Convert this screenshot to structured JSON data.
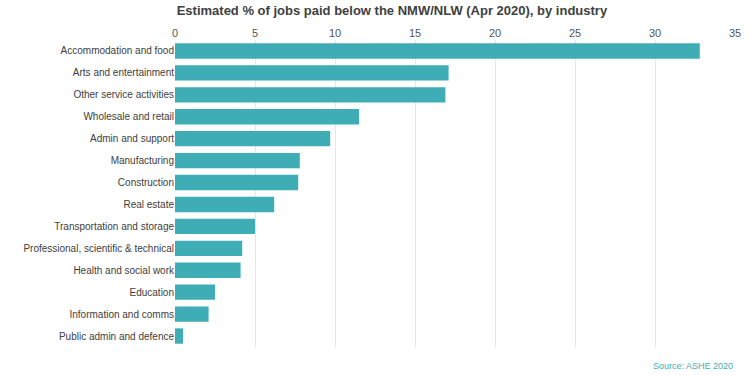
{
  "chart_data": {
    "type": "bar",
    "orientation": "horizontal",
    "title": "Estimated % of jobs paid below the NMW/NLW (Apr 2020), by industry",
    "annotations": [
      "Source: ASHE 2020"
    ],
    "categories": [
      "Accommodation and food",
      "Arts and entertainment",
      "Other service activities",
      "Wholesale and retail",
      "Admin and support",
      "Manufacturing",
      "Construction",
      "Real estate",
      "Transportation and storage",
      "Professional, scientific & technical",
      "Health and social work",
      "Education",
      "Information and comms",
      "Public admin and defence"
    ],
    "values": [
      32.8,
      17.1,
      16.9,
      11.5,
      9.7,
      7.8,
      7.7,
      6.2,
      5.0,
      4.2,
      4.1,
      2.5,
      2.1,
      0.5
    ],
    "color": "#3fadb5",
    "xlim": [
      0,
      35
    ],
    "xticks": [
      0,
      5,
      10,
      15,
      20,
      25,
      30,
      35
    ],
    "grid": true
  }
}
